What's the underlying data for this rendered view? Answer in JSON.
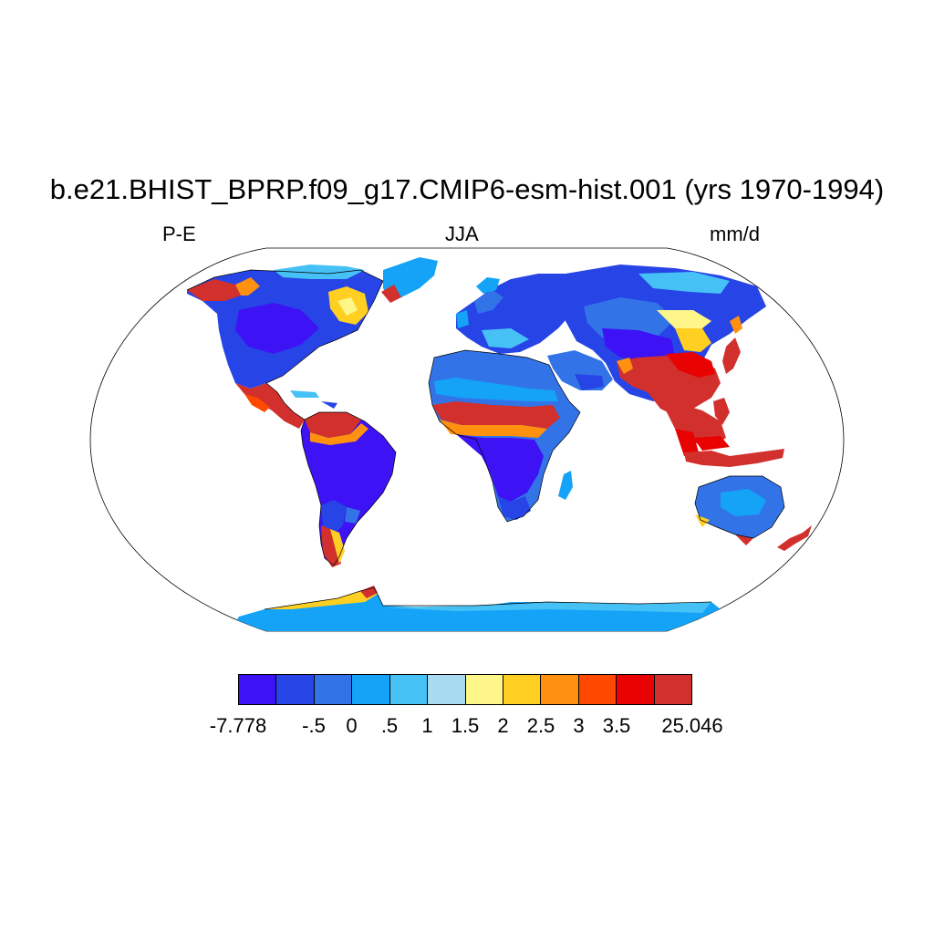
{
  "title": "b.e21.BHIST_BPRP.f09_g17.CMIP6-esm-hist.001 (yrs 1970-1994)",
  "labels": {
    "left": "P-E",
    "center": "JJA",
    "right": "mm/d"
  },
  "colorbar": {
    "colors": [
      "#3d12f5",
      "#2744e6",
      "#3274e8",
      "#14a3f7",
      "#46c1f6",
      "#a8dbf1",
      "#fff68a",
      "#ffcf22",
      "#ff9010",
      "#ff4800",
      "#e80202",
      "#d1302d"
    ],
    "ticks": [
      "-7.778",
      "-.5",
      "0",
      ".5",
      "1",
      "1.5",
      "2",
      "2.5",
      "3",
      "3.5",
      "25.046"
    ]
  },
  "map": {
    "projection": "Robinson",
    "ocean_color": "#ffffff",
    "coastline_color": "#000000"
  }
}
